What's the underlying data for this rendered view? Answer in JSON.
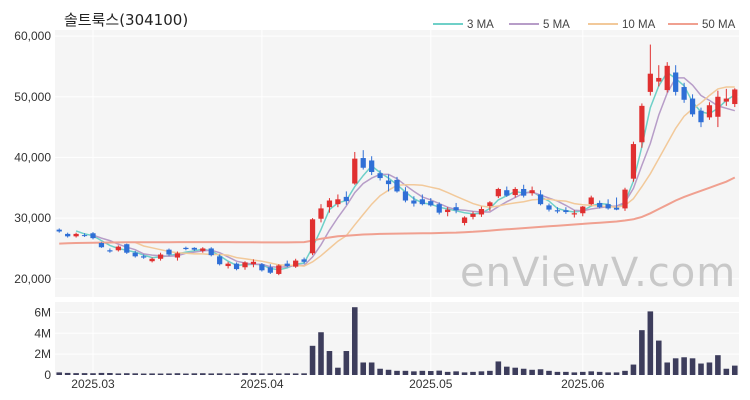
{
  "title": "솔트룩스(304100)",
  "watermark": "enViewV.com",
  "colors": {
    "up": "#e03030",
    "down": "#2f6fd6",
    "volume": "#3d3d5c",
    "panel_bg": "#f5f5f5",
    "grid": "#ffffff",
    "ma3": "#6fd0c8",
    "ma5": "#b79dc8",
    "ma10": "#f2c99a",
    "ma50": "#f0a090"
  },
  "chart_data": [
    {
      "type": "candlestick",
      "title": "솔트룩스(304100)",
      "ylim": [
        17000,
        61000
      ],
      "y_ticks": [
        20000,
        30000,
        40000,
        50000,
        60000
      ],
      "y_tick_labels": [
        "20,000",
        "30,000",
        "40,000",
        "50,000",
        "60,000"
      ],
      "x_ticks": [
        {
          "index": 4,
          "label": "2025.03"
        },
        {
          "index": 24,
          "label": "2025.04"
        },
        {
          "index": 44,
          "label": "2025.05"
        },
        {
          "index": 62,
          "label": "2025.06"
        }
      ],
      "candles": [
        [
          28100,
          28300,
          27600,
          27800
        ],
        [
          27400,
          27600,
          26800,
          27000
        ],
        [
          27000,
          27600,
          26800,
          27400
        ],
        [
          27200,
          27500,
          26900,
          27100
        ],
        [
          27500,
          27700,
          26500,
          26700
        ],
        [
          25900,
          26000,
          25100,
          25200
        ],
        [
          24700,
          25000,
          24300,
          24500
        ],
        [
          24700,
          25500,
          24500,
          25300
        ],
        [
          25700,
          25800,
          24100,
          24300
        ],
        [
          24300,
          24600,
          23500,
          23700
        ],
        [
          23700,
          24000,
          23300,
          23500
        ],
        [
          22900,
          23500,
          22700,
          23300
        ],
        [
          23300,
          24300,
          23000,
          24000
        ],
        [
          24800,
          25000,
          23800,
          24000
        ],
        [
          23500,
          24500,
          23000,
          24200
        ],
        [
          25100,
          25300,
          24700,
          24900
        ],
        [
          25100,
          25200,
          24600,
          24800
        ],
        [
          24600,
          25200,
          24300,
          25000
        ],
        [
          25000,
          25200,
          23700,
          23900
        ],
        [
          23700,
          24000,
          22200,
          22400
        ],
        [
          22100,
          22800,
          21700,
          22500
        ],
        [
          22500,
          22700,
          21400,
          21600
        ],
        [
          21900,
          22900,
          21500,
          22700
        ],
        [
          22400,
          23200,
          21900,
          22800
        ],
        [
          22400,
          22600,
          21200,
          21400
        ],
        [
          21900,
          22400,
          20800,
          21000
        ],
        [
          20800,
          22400,
          20600,
          22200
        ],
        [
          22500,
          23000,
          21900,
          22100
        ],
        [
          22000,
          23300,
          21800,
          23000
        ],
        [
          23200,
          23500,
          22500,
          22800
        ],
        [
          24200,
          30000,
          23900,
          29800
        ],
        [
          29900,
          32300,
          29300,
          31600
        ],
        [
          31800,
          33300,
          30900,
          32900
        ],
        [
          32300,
          33900,
          31800,
          33100
        ],
        [
          33500,
          34400,
          32200,
          32800
        ],
        [
          35700,
          40900,
          35500,
          39800
        ],
        [
          39900,
          41200,
          38000,
          38300
        ],
        [
          39500,
          40200,
          37100,
          37600
        ],
        [
          37400,
          37900,
          36200,
          36600
        ],
        [
          36200,
          37200,
          34400,
          35600
        ],
        [
          36300,
          36800,
          34200,
          34400
        ],
        [
          34400,
          35100,
          32600,
          32900
        ],
        [
          32900,
          33600,
          31900,
          32400
        ],
        [
          33100,
          33900,
          32100,
          32300
        ],
        [
          32800,
          33300,
          31900,
          32100
        ],
        [
          32300,
          32600,
          30600,
          30900
        ],
        [
          31000,
          31800,
          30300,
          31400
        ],
        [
          31800,
          32500,
          30800,
          31300
        ],
        [
          29200,
          30300,
          28800,
          30100
        ],
        [
          30200,
          31100,
          29800,
          30700
        ],
        [
          30600,
          31900,
          30200,
          31500
        ],
        [
          32000,
          32800,
          31200,
          32600
        ],
        [
          33600,
          35000,
          33300,
          34800
        ],
        [
          34600,
          35200,
          33500,
          33700
        ],
        [
          33800,
          35100,
          33400,
          34800
        ],
        [
          34800,
          35500,
          33400,
          33700
        ],
        [
          34100,
          35200,
          33700,
          34600
        ],
        [
          33900,
          34600,
          32100,
          32300
        ],
        [
          32100,
          32400,
          31100,
          31400
        ],
        [
          31300,
          31800,
          30800,
          31100
        ],
        [
          31300,
          31800,
          30700,
          31000
        ],
        [
          30600,
          31300,
          30100,
          30800
        ],
        [
          30800,
          32000,
          30300,
          31900
        ],
        [
          32300,
          33700,
          32100,
          33400
        ],
        [
          32500,
          32900,
          31600,
          31800
        ],
        [
          32300,
          33100,
          31400,
          31600
        ],
        [
          31700,
          33400,
          31300,
          31400
        ],
        [
          31600,
          35000,
          31200,
          34700
        ],
        [
          36500,
          42600,
          36000,
          42200
        ],
        [
          42500,
          48900,
          41600,
          48500
        ],
        [
          50800,
          58600,
          50200,
          53800
        ],
        [
          52500,
          55200,
          51700,
          53100
        ],
        [
          51100,
          55700,
          50700,
          55100
        ],
        [
          54000,
          55200,
          50200,
          50800
        ],
        [
          51600,
          52300,
          49000,
          49500
        ],
        [
          49700,
          50400,
          46700,
          47100
        ],
        [
          47700,
          48200,
          45000,
          45800
        ],
        [
          46600,
          49100,
          46200,
          48600
        ],
        [
          46700,
          51000,
          45000,
          50000
        ],
        [
          49200,
          51300,
          48500,
          49700
        ],
        [
          48800,
          51400,
          48300,
          51200
        ]
      ],
      "volume": {
        "ylim": [
          0,
          7000000
        ],
        "y_ticks": [
          0,
          2000000,
          4000000,
          6000000
        ],
        "y_tick_labels": [
          "0",
          "2M",
          "4M",
          "6M"
        ],
        "values": [
          250000,
          200000,
          180000,
          180000,
          170000,
          200000,
          190000,
          150000,
          170000,
          160000,
          140000,
          150000,
          140000,
          150000,
          170000,
          140000,
          160000,
          170000,
          150000,
          160000,
          140000,
          150000,
          180000,
          180000,
          150000,
          160000,
          150000,
          160000,
          150000,
          160000,
          2800000,
          4100000,
          2300000,
          700000,
          2300000,
          6500000,
          1200000,
          1200000,
          600000,
          500000,
          400000,
          400000,
          350000,
          400000,
          380000,
          420000,
          300000,
          350000,
          250000,
          300000,
          350000,
          400000,
          1300000,
          800000,
          700000,
          600000,
          500000,
          550000,
          400000,
          300000,
          300000,
          250000,
          300000,
          350000,
          300000,
          250000,
          250000,
          400000,
          1000000,
          4300000,
          6100000,
          3300000,
          1200000,
          1600000,
          1700000,
          1600000,
          1100000,
          1200000,
          1900000,
          600000,
          900000
        ]
      },
      "series": [
        {
          "name": "3 MA",
          "values": [
            null,
            null,
            27900,
            27400,
            27100,
            26300,
            25500,
            25000,
            24700,
            24400,
            23900,
            23500,
            23600,
            23800,
            24100,
            24400,
            24600,
            24900,
            24600,
            23800,
            22900,
            22200,
            22300,
            22400,
            22300,
            21700,
            21500,
            21800,
            22400,
            22600,
            25200,
            28100,
            31400,
            32500,
            32900,
            35200,
            37000,
            38600,
            37500,
            36600,
            35500,
            34300,
            33200,
            32500,
            32300,
            31800,
            31500,
            31200,
            30900,
            30700,
            30800,
            31600,
            33000,
            33700,
            34400,
            34100,
            34400,
            33500,
            32800,
            31600,
            31200,
            31000,
            31200,
            32000,
            32400,
            32300,
            31600,
            32600,
            36100,
            41800,
            48200,
            51800,
            54000,
            53000,
            51800,
            49100,
            47500,
            47200,
            48100,
            49400,
            50300
          ]
        },
        {
          "name": "5 MA",
          "values": [
            null,
            null,
            null,
            null,
            27200,
            26700,
            26300,
            25700,
            25200,
            24800,
            24100,
            23900,
            23800,
            23700,
            23800,
            24200,
            24400,
            24600,
            24700,
            24300,
            23600,
            22900,
            22600,
            22400,
            22400,
            22000,
            21900,
            22000,
            22200,
            22200,
            23600,
            25600,
            28000,
            30100,
            32000,
            34200,
            35700,
            36600,
            37200,
            37200,
            36500,
            35400,
            34400,
            33500,
            33000,
            32400,
            31800,
            31400,
            31300,
            31100,
            31000,
            31000,
            31900,
            32700,
            33400,
            34100,
            34300,
            33800,
            33300,
            32800,
            32100,
            31300,
            31200,
            31500,
            31700,
            31900,
            32000,
            32600,
            34900,
            38700,
            42300,
            47000,
            50600,
            53100,
            53100,
            51900,
            50200,
            49400,
            48500,
            48100,
            47700
          ]
        },
        {
          "name": "10 MA",
          "values": [
            null,
            null,
            null,
            null,
            null,
            null,
            null,
            null,
            null,
            26000,
            25400,
            25100,
            24800,
            24500,
            24300,
            24200,
            24100,
            24100,
            24000,
            24000,
            23900,
            23500,
            23300,
            23100,
            22900,
            22600,
            22300,
            22200,
            22200,
            22100,
            22800,
            23800,
            25000,
            26200,
            27100,
            28900,
            30600,
            32300,
            33700,
            34600,
            35400,
            35500,
            35500,
            35400,
            35100,
            34800,
            34200,
            33600,
            33000,
            32400,
            32000,
            31800,
            32000,
            32300,
            32500,
            32700,
            33000,
            33100,
            33100,
            32900,
            32800,
            32400,
            32200,
            32100,
            32000,
            31900,
            31800,
            32100,
            33200,
            35200,
            37300,
            39800,
            42300,
            44800,
            46800,
            48000,
            49000,
            50200,
            51300,
            51600,
            51600
          ]
        },
        {
          "name": "50 MA",
          "values": [
            25800,
            25850,
            25900,
            25920,
            25950,
            25970,
            25980,
            26000,
            26010,
            26020,
            26020,
            26030,
            26030,
            26030,
            26040,
            26040,
            26050,
            26050,
            26050,
            26040,
            26040,
            26030,
            26020,
            26010,
            26000,
            25990,
            25990,
            26000,
            26020,
            26050,
            26300,
            26600,
            26800,
            27000,
            27100,
            27200,
            27300,
            27350,
            27400,
            27420,
            27440,
            27460,
            27480,
            27500,
            27520,
            27550,
            27580,
            27620,
            27680,
            27750,
            27850,
            27950,
            28050,
            28150,
            28250,
            28350,
            28450,
            28550,
            28650,
            28750,
            28850,
            28950,
            29050,
            29150,
            29250,
            29350,
            29450,
            29600,
            29800,
            30200,
            30800,
            31500,
            32200,
            32900,
            33500,
            34000,
            34500,
            35000,
            35500,
            36000,
            36700
          ]
        }
      ]
    }
  ]
}
